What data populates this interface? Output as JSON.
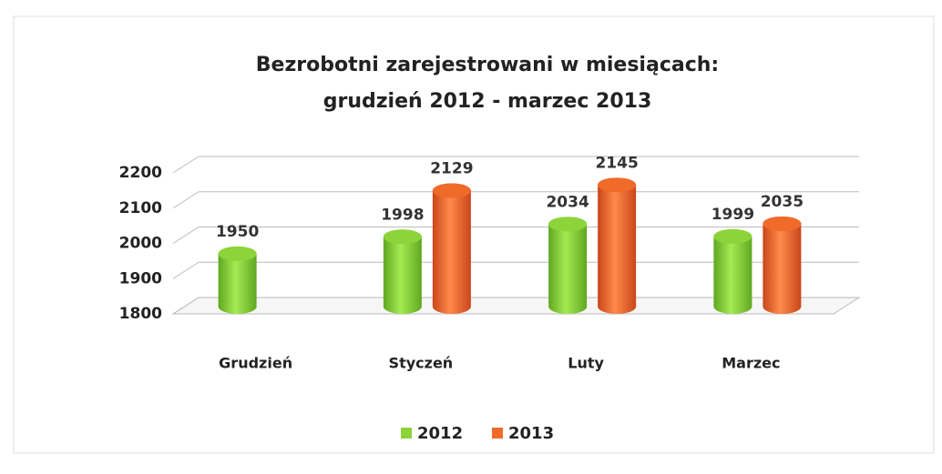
{
  "chart_data": {
    "type": "bar3d",
    "title": [
      "Bezrobotni zarejestrowani w miesiącach:",
      "grudzień 2012 - marzec 2013"
    ],
    "categories": [
      "Grudzień",
      "Styczeń",
      "Luty",
      "Marzec"
    ],
    "series": [
      {
        "name": "2012",
        "color": "#8cd43a",
        "values": [
          1950,
          1998,
          2034,
          1999
        ]
      },
      {
        "name": "2013",
        "color": "#f06a2a",
        "values": [
          null,
          2129,
          2145,
          2035
        ]
      }
    ],
    "ylim": [
      1800,
      2200
    ],
    "yticks": [
      1800,
      1900,
      2000,
      2100,
      2200
    ],
    "grid": true,
    "legend": "bottom"
  }
}
